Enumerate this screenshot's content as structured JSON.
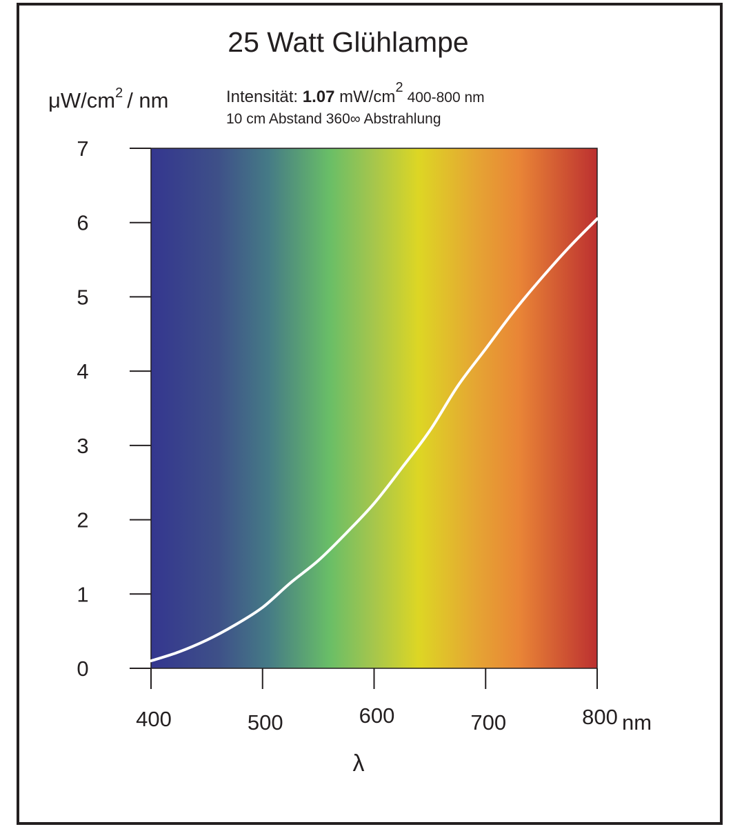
{
  "chart_data": {
    "type": "line",
    "title": "25 Watt  Glühlampe",
    "ylabel": {
      "main": "μW/cm",
      "sup": "2",
      "rest": "/ nm"
    },
    "xlabel": "λ",
    "x_unit": "nm",
    "annotations": {
      "intensity_prefix": "Intensität: ",
      "intensity_value": "1.07",
      "intensity_unit": " mW/cm",
      "intensity_sup": "2",
      "intensity_range": "400-800 nm",
      "line2": "10 cm Abstand  360∞ Abstrahlung"
    },
    "xlim": [
      400,
      800
    ],
    "ylim": [
      0,
      7
    ],
    "x_ticks": [
      "400",
      "500",
      "600",
      "700",
      "800"
    ],
    "y_ticks": [
      "0",
      "1",
      "2",
      "3",
      "4",
      "5",
      "6",
      "7"
    ],
    "grid": false,
    "background": "visible spectrum gradient",
    "spectrum_stops": [
      {
        "wavelength": 400,
        "color": "#34368f"
      },
      {
        "wavelength": 460,
        "color": "#3e5088"
      },
      {
        "wavelength": 505,
        "color": "#457a86"
      },
      {
        "wavelength": 560,
        "color": "#69be67"
      },
      {
        "wavelength": 600,
        "color": "#a6c64c"
      },
      {
        "wavelength": 640,
        "color": "#ddd624"
      },
      {
        "wavelength": 690,
        "color": "#e5a633"
      },
      {
        "wavelength": 730,
        "color": "#e98536"
      },
      {
        "wavelength": 800,
        "color": "#bc3030"
      }
    ],
    "series": [
      {
        "color": "#ffffff",
        "x": [
          400,
          425,
          450,
          475,
          500,
          525,
          550,
          575,
          600,
          625,
          650,
          675,
          700,
          725,
          750,
          775,
          800
        ],
        "y": [
          0.1,
          0.22,
          0.38,
          0.58,
          0.82,
          1.15,
          1.45,
          1.82,
          2.22,
          2.7,
          3.2,
          3.8,
          4.3,
          4.8,
          5.25,
          5.67,
          6.05
        ]
      }
    ]
  }
}
